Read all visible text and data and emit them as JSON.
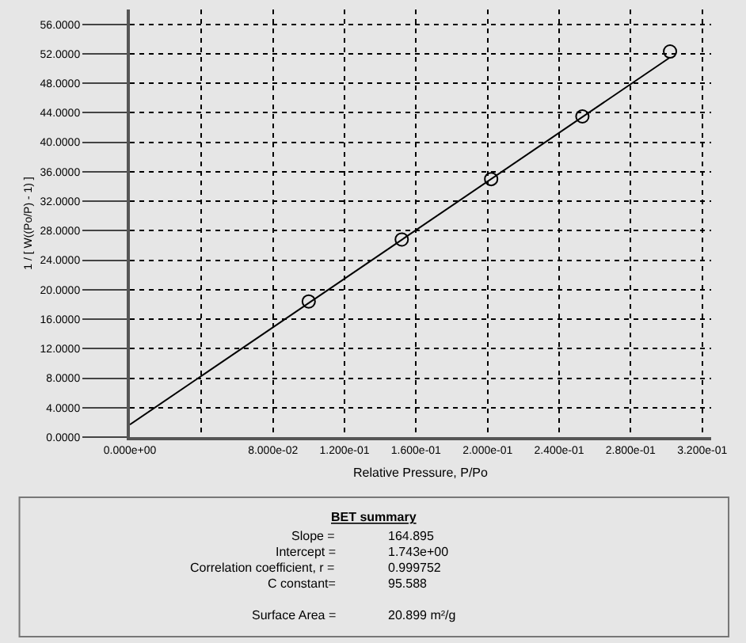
{
  "chart_data": {
    "type": "scatter",
    "xlabel": "Relative Pressure, P/Po",
    "ylabel": "1 / [ W((Po/P) - 1) ]",
    "series": [
      {
        "color": "#000000",
        "marker": "circle",
        "x": [
          0.1,
          0.152,
          0.202,
          0.253,
          0.302
        ],
        "values": [
          18.4,
          26.8,
          35.0,
          43.5,
          52.3
        ]
      },
      {
        "type": "line",
        "color": "#000000",
        "marker": "none",
        "line_style": "solid",
        "x": [
          0,
          0.302
        ],
        "values": [
          1.7,
          51.5
        ]
      }
    ],
    "xlim": [
      0,
      0.325
    ],
    "ylim": [
      0,
      58
    ],
    "xticks": [
      {
        "value": 0,
        "label": "0.000e+00"
      },
      {
        "value": 0.04,
        "label": null
      },
      {
        "value": 0.08,
        "label": "8.000e-02"
      },
      {
        "value": 0.12,
        "label": "1.200e-01"
      },
      {
        "value": 0.16,
        "label": "1.600e-01"
      },
      {
        "value": 0.2,
        "label": "2.000e-01"
      },
      {
        "value": 0.24,
        "label": "2.400e-01"
      },
      {
        "value": 0.28,
        "label": "2.800e-01"
      },
      {
        "value": 0.32,
        "label": "3.200e-01"
      }
    ],
    "yticks": [
      {
        "value": 0,
        "label": "0.0000"
      },
      {
        "value": 4,
        "label": "4.0000"
      },
      {
        "value": 8,
        "label": "8.0000"
      },
      {
        "value": 12,
        "label": "12.0000"
      },
      {
        "value": 16,
        "label": "16.0000"
      },
      {
        "value": 20,
        "label": "20.0000"
      },
      {
        "value": 24,
        "label": "24.0000"
      },
      {
        "value": 28,
        "label": "28.0000"
      },
      {
        "value": 32,
        "label": "32.0000"
      },
      {
        "value": 36,
        "label": "36.0000"
      },
      {
        "value": 40,
        "label": "40.0000"
      },
      {
        "value": 44,
        "label": "44.0000"
      },
      {
        "value": 48,
        "label": "48.0000"
      },
      {
        "value": 52,
        "label": "52.0000"
      },
      {
        "value": 56,
        "label": "56.0000"
      }
    ],
    "grid": true,
    "annotations": [
      "BET summary",
      "Slope =",
      "164.895",
      "Intercept =",
      "1.743e+00",
      "Correlation coefficient, r =",
      "0.999752",
      "C constant=",
      "95.588",
      "Surface Area =",
      "20.899 m²/g"
    ]
  }
}
